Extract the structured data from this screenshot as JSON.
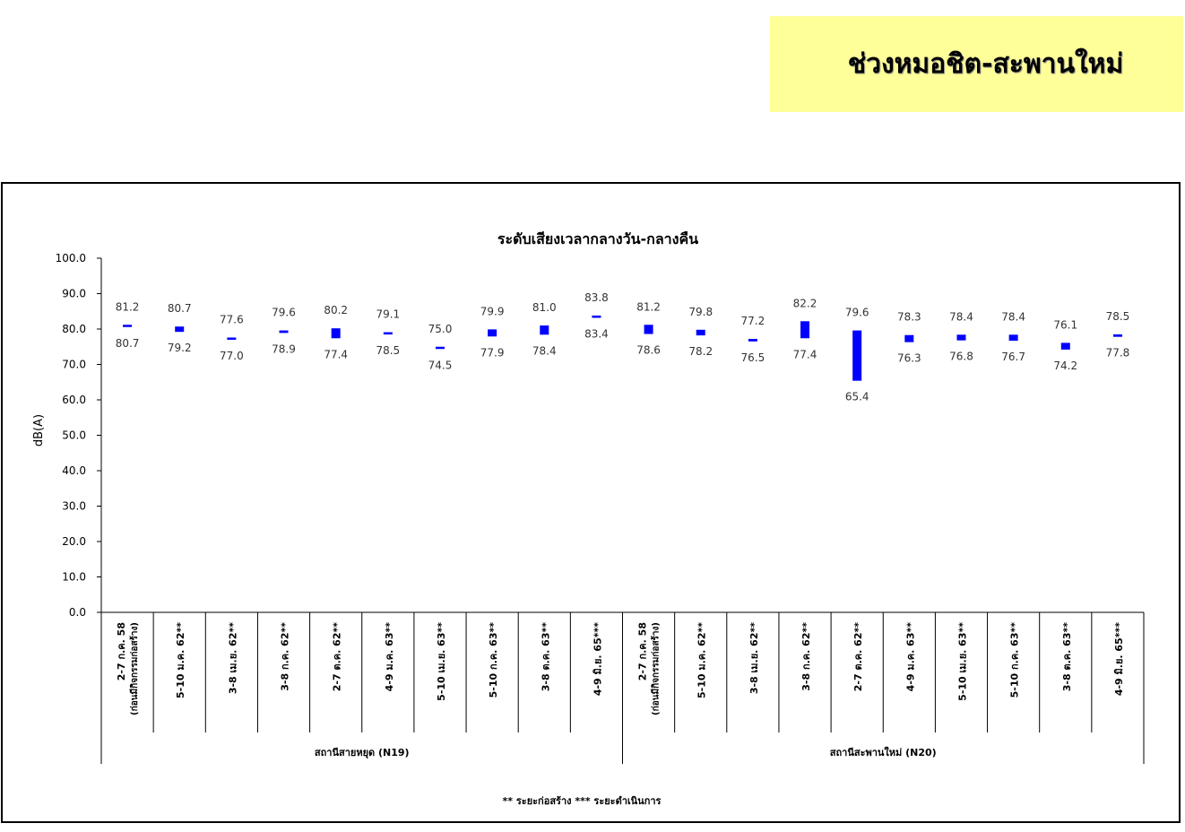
{
  "header": {
    "title": "ช่วงหมอชิต-สะพานใหม่"
  },
  "colors": {
    "header_bg": "#ffff99",
    "bar": "#0000ff",
    "axis": "#000000",
    "text": "#000000",
    "label": "#333333"
  },
  "chart_data": {
    "type": "floating-bar",
    "title": "ระดับเสียงเวลากลางวัน-กลางคืน",
    "ylabel": "dB(A)",
    "ylim": [
      0,
      100
    ],
    "yticks": [
      "0.0",
      "10.0",
      "20.0",
      "30.0",
      "40.0",
      "50.0",
      "60.0",
      "70.0",
      "80.0",
      "90.0",
      "100.0"
    ],
    "categories": [
      "2-7 ก.ค. 58|(ก่อนมีกิจกรรมก่อสร้าง)",
      "5-10 ม.ค. 62**",
      "3-8 เม.ย. 62**",
      "3-8 ก.ค. 62**",
      "2-7 ต.ค. 62**",
      "4-9 ม.ค. 63**",
      "5-10 เม.ย. 63**",
      "5-10 ก.ค. 63**",
      "3-8 ต.ค. 63**",
      "4-9 มิ.ย. 65***",
      "2-7 ก.ค. 58|(ก่อนมีกิจกรรมก่อสร้าง)",
      "5-10 ม.ค. 62**",
      "3-8 เม.ย. 62**",
      "3-8 ก.ค. 62**",
      "2-7 ต.ค. 62**",
      "4-9 ม.ค. 63**",
      "5-10 เม.ย. 63**",
      "5-10 ก.ค. 63**",
      "3-8 ต.ค. 63**",
      "4-9 มิ.ย. 65***"
    ],
    "groups": [
      {
        "label": "สถานีสายหยุด (N19)",
        "count": 10
      },
      {
        "label": "สถานีสะพานใหม่ (N20)",
        "count": 10
      }
    ],
    "series": [
      {
        "name": "max",
        "values": [
          81.2,
          80.7,
          77.6,
          79.6,
          80.2,
          79.1,
          75.0,
          79.9,
          81.0,
          83.8,
          81.2,
          79.8,
          77.2,
          82.2,
          79.6,
          78.3,
          78.4,
          78.4,
          76.1,
          78.5
        ]
      },
      {
        "name": "min",
        "values": [
          80.7,
          79.2,
          77.0,
          78.9,
          77.4,
          78.5,
          74.5,
          77.9,
          78.4,
          83.4,
          78.6,
          78.2,
          76.5,
          77.4,
          65.4,
          76.3,
          76.8,
          76.7,
          74.2,
          77.8
        ]
      }
    ],
    "max_labels": [
      "81.2",
      "80.7",
      "77.6",
      "79.6",
      "80.2",
      "79.1",
      "75.0",
      "79.9",
      "81.0",
      "83.8",
      "81.2",
      "79.8",
      "77.2",
      "82.2",
      "79.6",
      "78.3",
      "78.4",
      "78.4",
      "76.1",
      "78.5"
    ],
    "min_labels": [
      "80.7",
      "79.2",
      "77.0",
      "78.9",
      "77.4",
      "78.5",
      "74.5",
      "77.9",
      "78.4",
      "83.4",
      "78.6",
      "78.2",
      "76.5",
      "77.4",
      "65.4",
      "76.3",
      "76.8",
      "76.7",
      "74.2",
      "77.8"
    ],
    "footnote": "** ระยะก่อสร้าง    *** ระยะดำเนินการ",
    "grid": false,
    "legend": "none"
  }
}
